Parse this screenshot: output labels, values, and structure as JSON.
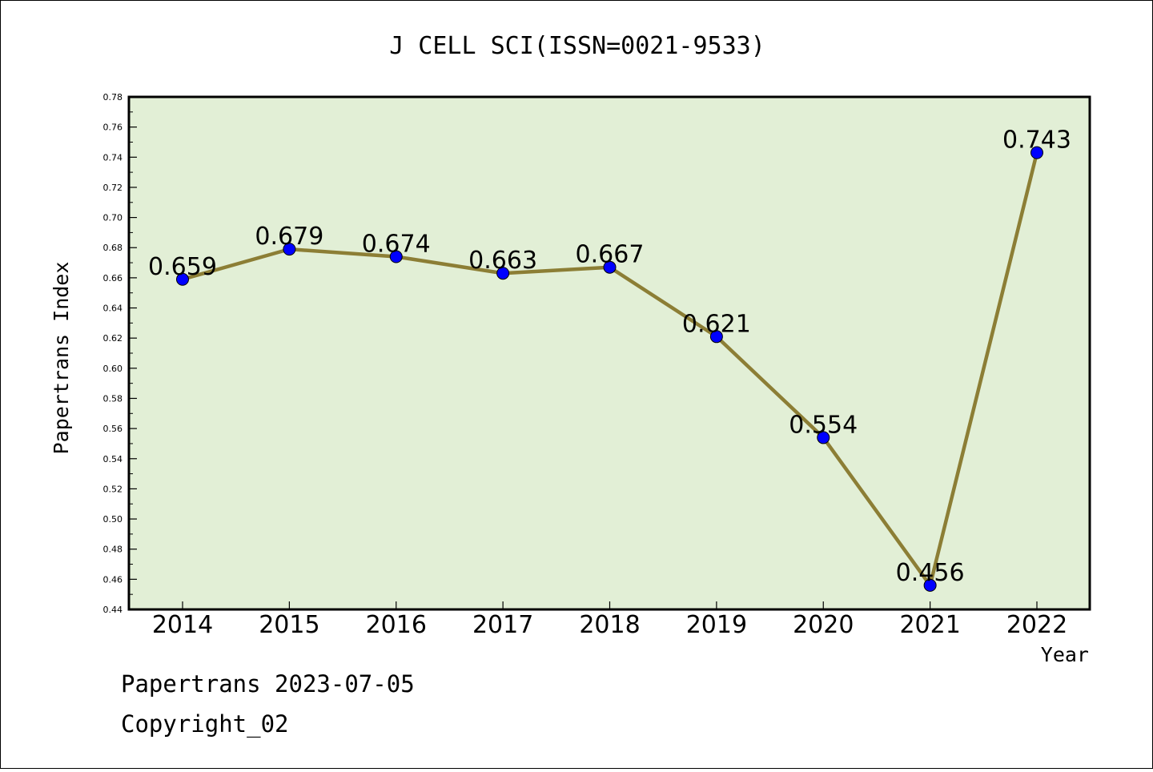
{
  "chart_data": {
    "type": "line",
    "title": "J CELL SCI(ISSN=0021-9533)",
    "xlabel": "Year",
    "ylabel": "Papertrans Index",
    "categories": [
      "2014",
      "2015",
      "2016",
      "2017",
      "2018",
      "2019",
      "2020",
      "2021",
      "2022"
    ],
    "series": [
      {
        "values": [
          0.659,
          0.679,
          0.674,
          0.663,
          0.667,
          0.621,
          0.554,
          0.456,
          0.743
        ]
      }
    ],
    "data_labels": [
      "0.659",
      "0.679",
      "0.674",
      "0.663",
      "0.667",
      "0.621",
      "0.554",
      "0.456",
      "0.743"
    ],
    "ylim": [
      0.44,
      0.78
    ],
    "yticks": [
      "0.44",
      "0.46",
      "0.48",
      "0.50",
      "0.52",
      "0.54",
      "0.56",
      "0.58",
      "0.60",
      "0.62",
      "0.64",
      "0.66",
      "0.68",
      "0.70",
      "0.72",
      "0.74",
      "0.76",
      "0.78"
    ],
    "grid": false,
    "colors": {
      "plot_background": "#e2efd6",
      "line": "#8c7e35",
      "marker": "#0000ff"
    }
  },
  "footer": {
    "source": "Papertrans 2023-07-05",
    "copyright": "Copyright_02"
  }
}
